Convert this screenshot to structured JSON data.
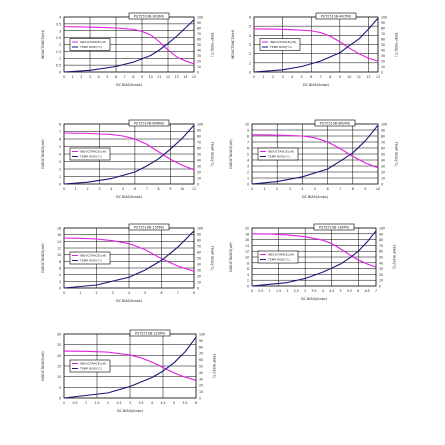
{
  "page": {
    "background": "#ffffff"
  },
  "colors": {
    "inductance": "#e020e0",
    "temp": "#1a1a7a",
    "grid": "#000000",
    "axis_text": "#333333"
  },
  "chart_data": [
    {
      "type": "line",
      "title": "PST2510B-3R3MS",
      "xlabel": "DC BIAS(Amps)",
      "ylabel": "INDUCTANCE(uH)",
      "y2label": "TEMP RISE(°C)",
      "legend": [
        "INDUCTANCE(uH)",
        "TEMP RISE(°C)"
      ],
      "legend_position": "center-left",
      "xticks": [
        "0",
        "1",
        "2",
        "3",
        "4",
        "5",
        "6",
        "7",
        "8",
        "9",
        "10",
        "11",
        "12",
        "13",
        "14",
        "15"
      ],
      "xlim": [
        0,
        15
      ],
      "yticks": [
        "0",
        "0.5",
        "1",
        "1.5",
        "2",
        "2.5",
        "3",
        "3.5",
        "4"
      ],
      "ylim": [
        0,
        4
      ],
      "y2ticks": [
        "0",
        "10",
        "20",
        "30",
        "40",
        "50",
        "60",
        "70",
        "80",
        "90",
        "100"
      ],
      "y2lim": [
        0,
        100
      ],
      "series": [
        {
          "name": "INDUCTANCE(uH)",
          "axis": "left",
          "x": [
            0,
            2,
            4,
            6,
            8,
            9,
            10,
            11,
            12,
            13,
            14,
            15
          ],
          "y": [
            3.3,
            3.28,
            3.25,
            3.2,
            3.1,
            2.95,
            2.7,
            2.2,
            1.6,
            1.1,
            0.8,
            0.6
          ]
        },
        {
          "name": "TEMP RISE(°C)",
          "axis": "right",
          "x": [
            0,
            3,
            6,
            8,
            10,
            11,
            12,
            13,
            14,
            15
          ],
          "y": [
            0,
            3,
            10,
            18,
            30,
            40,
            52,
            65,
            80,
            95
          ]
        }
      ]
    },
    {
      "type": "line",
      "title": "PST2510B-4R7MS",
      "xlabel": "DC BIAS(Amps)",
      "ylabel": "INDUCTANCE(uH)",
      "y2label": "TEMP RISE(°C)",
      "legend": [
        "INDUCTANCE(uH)",
        "TEMP RISE(°C)"
      ],
      "legend_position": "center-left",
      "xticks": [
        "0",
        "1",
        "2",
        "3",
        "4",
        "5",
        "6",
        "7",
        "8",
        "9",
        "10",
        "11",
        "12",
        "13"
      ],
      "xlim": [
        0,
        13
      ],
      "yticks": [
        "0",
        "1",
        "2",
        "3",
        "4",
        "5",
        "6"
      ],
      "ylim": [
        0,
        6
      ],
      "y2ticks": [
        "0",
        "10",
        "20",
        "30",
        "40",
        "50",
        "60",
        "70",
        "80",
        "90",
        "100"
      ],
      "y2lim": [
        0,
        100
      ],
      "series": [
        {
          "name": "INDUCTANCE(uH)",
          "axis": "left",
          "x": [
            0,
            2,
            4,
            6,
            7,
            8,
            9,
            10,
            11,
            12,
            13
          ],
          "y": [
            4.7,
            4.68,
            4.62,
            4.5,
            4.3,
            3.9,
            3.3,
            2.6,
            2.0,
            1.5,
            1.2
          ]
        },
        {
          "name": "TEMP RISE(°C)",
          "axis": "right",
          "x": [
            0,
            3,
            5,
            7,
            9,
            10,
            11,
            12,
            13
          ],
          "y": [
            0,
            4,
            10,
            20,
            35,
            48,
            60,
            78,
            98
          ]
        }
      ]
    },
    {
      "type": "line",
      "title": "PST2510B-6R8MS",
      "xlabel": "DC BIAS(Amps)",
      "ylabel": "INDUCTANCE(uH)",
      "y2label": "TEMP RISE(°C)",
      "legend": [
        "INDUCTANCE(uH)",
        "TEMP RISE(°C)"
      ],
      "legend_position": "center-left",
      "xticks": [
        "0",
        "1",
        "2",
        "3",
        "4",
        "5",
        "6",
        "7",
        "8",
        "9",
        "10",
        "11"
      ],
      "xlim": [
        0,
        11
      ],
      "yticks": [
        "0",
        "1",
        "2",
        "3",
        "4",
        "5",
        "6",
        "7",
        "8"
      ],
      "ylim": [
        0,
        8
      ],
      "y2ticks": [
        "0",
        "10",
        "20",
        "30",
        "40",
        "50",
        "60",
        "70",
        "80",
        "90",
        "100"
      ],
      "y2lim": [
        0,
        100
      ],
      "series": [
        {
          "name": "INDUCTANCE(uH)",
          "axis": "left",
          "x": [
            0,
            2,
            4,
            5,
            6,
            7,
            8,
            9,
            10,
            11
          ],
          "y": [
            6.8,
            6.75,
            6.6,
            6.4,
            6.0,
            5.3,
            4.3,
            3.3,
            2.5,
            1.9
          ]
        },
        {
          "name": "TEMP RISE(°C)",
          "axis": "right",
          "x": [
            0,
            2,
            4,
            6,
            7,
            8,
            9,
            10,
            11
          ],
          "y": [
            0,
            3,
            9,
            20,
            30,
            42,
            58,
            76,
            98
          ]
        }
      ]
    },
    {
      "type": "line",
      "title": "PST2510B-8R2MS",
      "xlabel": "DC BIAS(Amps)",
      "ylabel": "INDUCTANCE(uH)",
      "y2label": "TEMP RISE(°C)",
      "legend": [
        "INDUCTANCE(uH)",
        "TEMP RISE(°C)"
      ],
      "legend_position": "center-left",
      "xticks": [
        "0",
        "1",
        "2",
        "3",
        "4",
        "5",
        "6",
        "7",
        "8",
        "9",
        "10"
      ],
      "xlim": [
        0,
        10
      ],
      "yticks": [
        "0",
        "1",
        "2",
        "3",
        "4",
        "5",
        "6",
        "7",
        "8",
        "9",
        "10"
      ],
      "ylim": [
        0,
        10
      ],
      "y2ticks": [
        "0",
        "10",
        "20",
        "30",
        "40",
        "50",
        "60",
        "70",
        "80",
        "90",
        "100"
      ],
      "y2lim": [
        0,
        100
      ],
      "series": [
        {
          "name": "INDUCTANCE(uH)",
          "axis": "left",
          "x": [
            0,
            2,
            4,
            5,
            6,
            7,
            8,
            9,
            10
          ],
          "y": [
            8.2,
            8.15,
            8.0,
            7.7,
            7.0,
            5.9,
            4.6,
            3.5,
            2.7
          ]
        },
        {
          "name": "TEMP RISE(°C)",
          "axis": "right",
          "x": [
            0,
            2,
            4,
            6,
            7,
            8,
            9,
            10
          ],
          "y": [
            0,
            4,
            12,
            25,
            38,
            52,
            72,
            98
          ]
        }
      ]
    },
    {
      "type": "line",
      "title": "PST2510B-150MS",
      "xlabel": "DC BIAS(Amps)",
      "ylabel": "INDUCTANCE(uH)",
      "y2label": "TEMP RISE(°C)",
      "legend": [
        "INDUCTANCE(uH)",
        "TEMP RISE(°C)"
      ],
      "legend_position": "center-left",
      "xticks": [
        "0",
        "1",
        "2",
        "3",
        "4",
        "5",
        "6",
        "7",
        "8"
      ],
      "xlim": [
        0,
        8
      ],
      "yticks": [
        "0",
        "2",
        "4",
        "6",
        "8",
        "10",
        "12",
        "14",
        "16",
        "18"
      ],
      "ylim": [
        0,
        18
      ],
      "y2ticks": [
        "0",
        "10",
        "20",
        "30",
        "40",
        "50",
        "60",
        "70",
        "80",
        "90",
        "100"
      ],
      "y2lim": [
        0,
        100
      ],
      "series": [
        {
          "name": "INDUCTANCE(uH)",
          "axis": "left",
          "x": [
            0,
            1,
            2,
            3,
            4,
            5,
            6,
            7,
            8
          ],
          "y": [
            15.0,
            14.9,
            14.7,
            14.2,
            13.3,
            11.5,
            8.8,
            6.6,
            5.0
          ]
        },
        {
          "name": "TEMP RISE(°C)",
          "axis": "right",
          "x": [
            0,
            2,
            4,
            5,
            6,
            7,
            8
          ],
          "y": [
            0,
            5,
            18,
            30,
            46,
            68,
            95
          ]
        }
      ]
    },
    {
      "type": "line",
      "title": "PST2510B-180MS",
      "xlabel": "DC BIAS(Amps)",
      "ylabel": "INDUCTANCE(uH)",
      "y2label": "TEMP RISE(°C)",
      "legend": [
        "INDUCTANCE(uH)",
        "TEMP RISE(°C)"
      ],
      "legend_position": "center-left",
      "xticks": [
        "0",
        "0.5",
        "1",
        "1.5",
        "2",
        "2.5",
        "3",
        "3.5",
        "4",
        "4.5",
        "5",
        "5.5",
        "6",
        "6.5",
        "7"
      ],
      "xlim": [
        0,
        7
      ],
      "yticks": [
        "0",
        "2",
        "4",
        "6",
        "8",
        "10",
        "12",
        "14",
        "16",
        "18",
        "20"
      ],
      "ylim": [
        0,
        20
      ],
      "y2ticks": [
        "0",
        "10",
        "20",
        "30",
        "40",
        "50",
        "60",
        "70",
        "80",
        "90",
        "100"
      ],
      "y2lim": [
        0,
        100
      ],
      "series": [
        {
          "name": "INDUCTANCE(uH)",
          "axis": "left",
          "x": [
            0,
            1,
            2,
            3,
            4,
            4.5,
            5,
            5.5,
            6,
            6.5,
            7
          ],
          "y": [
            18.0,
            17.9,
            17.6,
            17.0,
            15.8,
            14.6,
            12.8,
            10.8,
            9.0,
            7.6,
            6.5
          ]
        },
        {
          "name": "TEMP RISE(°C)",
          "axis": "right",
          "x": [
            0,
            2,
            3,
            4,
            5,
            5.5,
            6,
            6.5,
            7
          ],
          "y": [
            0,
            6,
            13,
            24,
            38,
            48,
            60,
            76,
            95
          ]
        }
      ]
    },
    {
      "type": "line",
      "title": "PST2510B-220MS",
      "xlabel": "DC BIAS(Amps)",
      "ylabel": "INDUCTANCE(uH)",
      "y2label": "TEMP RISE(°C)",
      "legend": [
        "INDUCTANCE(uH)",
        "TEMP RISE(°C)"
      ],
      "legend_position": "center-left",
      "xticks": [
        "0",
        "0.5",
        "1",
        "1.5",
        "2",
        "2.5",
        "3",
        "3.5",
        "4",
        "4.5",
        "5",
        "5.5",
        "6"
      ],
      "xlim": [
        0,
        6
      ],
      "yticks": [
        "0",
        "5",
        "10",
        "15",
        "20",
        "25",
        "30"
      ],
      "ylim": [
        0,
        30
      ],
      "y2ticks": [
        "0",
        "10",
        "20",
        "30",
        "40",
        "50",
        "60",
        "70",
        "80",
        "90",
        "100"
      ],
      "y2lim": [
        0,
        100
      ],
      "series": [
        {
          "name": "INDUCTANCE(uH)",
          "axis": "left",
          "x": [
            0,
            1,
            2,
            3,
            3.5,
            4,
            4.5,
            5,
            5.5,
            6
          ],
          "y": [
            22.0,
            21.9,
            21.5,
            20.2,
            18.8,
            16.8,
            14.3,
            11.8,
            9.8,
            8.3
          ]
        },
        {
          "name": "TEMP RISE(°C)",
          "axis": "right",
          "x": [
            0,
            2,
            3,
            4,
            4.5,
            5,
            5.5,
            6
          ],
          "y": [
            0,
            8,
            18,
            32,
            42,
            55,
            72,
            95
          ]
        }
      ]
    }
  ]
}
